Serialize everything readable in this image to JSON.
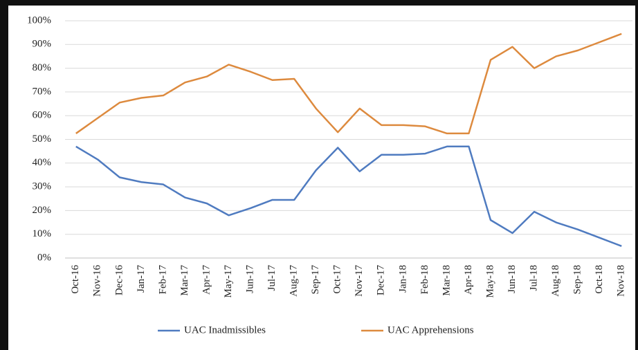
{
  "chart_data": {
    "type": "line",
    "categories": [
      "Oct-16",
      "Nov-16",
      "Dec-16",
      "Jan-17",
      "Feb-17",
      "Mar-17",
      "Apr-17",
      "May-17",
      "Jun-17",
      "Jul-17",
      "Aug-17",
      "Sep-17",
      "Oct-17",
      "Nov-17",
      "Dec-17",
      "Jan-18",
      "Feb-18",
      "Mar-18",
      "Apr-18",
      "May-18",
      "Jun-18",
      "Jul-18",
      "Aug-18",
      "Sep-18",
      "Oct-18",
      "Nov-18"
    ],
    "series": [
      {
        "name": "UAC Inadmissibles",
        "color": "#4f7bc0",
        "values": [
          47,
          41.5,
          34,
          32,
          31,
          25.5,
          23,
          18,
          21,
          24.5,
          24.5,
          37,
          46.5,
          36.5,
          43.5,
          43.5,
          44,
          47,
          47,
          16,
          10.5,
          19.5,
          15,
          12,
          8.5,
          5
        ]
      },
      {
        "name": "UAC Apprehensions",
        "color": "#dd8a3e",
        "values": [
          52.5,
          59,
          65.5,
          67.5,
          68.5,
          74,
          76.5,
          81.5,
          78.5,
          75,
          75.5,
          63,
          53,
          63,
          56,
          56,
          55.5,
          52.5,
          52.5,
          83.5,
          89,
          80,
          85,
          87.5,
          91,
          94.5
        ]
      }
    ],
    "ylim": [
      0,
      100
    ],
    "yticks": [
      {
        "value": 0,
        "label": "0%"
      },
      {
        "value": 10,
        "label": "10%"
      },
      {
        "value": 20,
        "label": "20%"
      },
      {
        "value": 30,
        "label": "30%"
      },
      {
        "value": 40,
        "label": "40%"
      },
      {
        "value": 50,
        "label": "50%"
      },
      {
        "value": 60,
        "label": "60%"
      },
      {
        "value": 70,
        "label": "70%"
      },
      {
        "value": 80,
        "label": "80%"
      },
      {
        "value": 90,
        "label": "90%"
      },
      {
        "value": 100,
        "label": "100%"
      }
    ],
    "grid": true,
    "legend": "bottom"
  }
}
